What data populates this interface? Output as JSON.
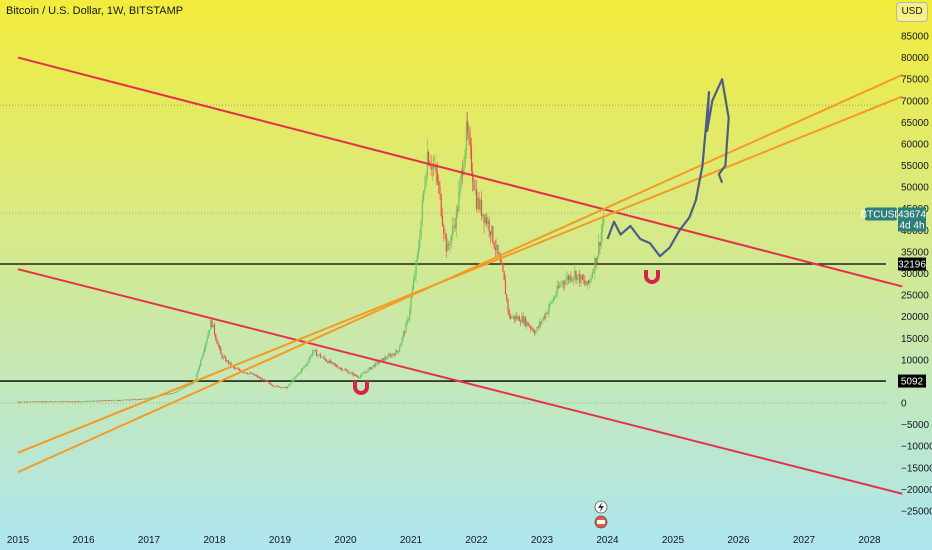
{
  "header": {
    "title": "Bitcoin / U.S. Dollar, 1W, BITSTAMP",
    "currency": "USD"
  },
  "colors": {
    "bg_top": "#f3ec3c",
    "bg_bottom": "#aee6f0",
    "red_line": "#e5304b",
    "orange_line": "#f59a23",
    "projection": "#4a5f86",
    "candle_up": "#6cc46a",
    "candle_down": "#e5504b",
    "level": "#000000",
    "magnet": "#d6234a"
  },
  "chart_data": {
    "type": "line",
    "ylim": [
      -27000,
      88000
    ],
    "xlim": [
      2015.0,
      2028.5
    ],
    "y_ticks": [
      85000,
      80000,
      75000,
      70000,
      65000,
      60000,
      55000,
      50000,
      45000,
      40000,
      35000,
      30000,
      25000,
      20000,
      15000,
      10000,
      5000,
      0,
      -5000,
      -10000,
      -15000,
      -20000,
      -25000
    ],
    "y_tick_labels": [
      "85000",
      "80000",
      "75000",
      "70000",
      "65000",
      "60000",
      "55000",
      "50000",
      "45000",
      "40000",
      "35000",
      "30000",
      "25000",
      "20000",
      "15000",
      "10000",
      "5000",
      "0",
      "−5000",
      "−10000",
      "−15000",
      "−20000",
      "−25000"
    ],
    "x_ticks": [
      2015,
      2016,
      2017,
      2018,
      2019,
      2020,
      2021,
      2022,
      2023,
      2024,
      2025,
      2026,
      2027,
      2028
    ],
    "x_tick_labels": [
      "2015",
      "2016",
      "2017",
      "2018",
      "2019",
      "2020",
      "2021",
      "2022",
      "2023",
      "2024",
      "2025",
      "2026",
      "2027",
      "2028"
    ],
    "series": [
      {
        "role": "price",
        "x": [
          2015.0,
          2016.0,
          2016.9,
          2017.4,
          2017.7,
          2017.95,
          2018.1,
          2018.3,
          2018.6,
          2018.9,
          2019.1,
          2019.4,
          2019.5,
          2019.8,
          2020.2,
          2020.5,
          2020.8,
          2020.95,
          2021.1,
          2021.25,
          2021.4,
          2021.55,
          2021.7,
          2021.85,
          2022.0,
          2022.2,
          2022.4,
          2022.5,
          2022.7,
          2022.9,
          2023.1,
          2023.3,
          2023.5,
          2023.7,
          2023.85,
          2023.95
        ],
        "y": [
          300,
          400,
          900,
          2500,
          5000,
          19000,
          11000,
          8000,
          6500,
          4000,
          3500,
          9000,
          12000,
          9000,
          6000,
          9500,
          12000,
          19000,
          34000,
          58000,
          52000,
          35000,
          44000,
          63000,
          47000,
          41000,
          30000,
          20000,
          19500,
          16500,
          22000,
          28000,
          30000,
          27000,
          35000,
          43674
        ]
      },
      {
        "role": "projection",
        "x": [
          2024.0,
          2024.1,
          2024.2,
          2024.35,
          2024.5,
          2024.65,
          2024.8,
          2024.95,
          2025.1,
          2025.25,
          2025.35,
          2025.45,
          2025.55,
          2025.52,
          2025.6,
          2025.75,
          2025.85,
          2025.8,
          2025.7,
          2025.75
        ],
        "y": [
          38000,
          42000,
          39000,
          41000,
          38000,
          37000,
          34000,
          36000,
          40000,
          43000,
          47000,
          55000,
          72000,
          63000,
          70000,
          75000,
          66000,
          55000,
          53000,
          51000
        ]
      }
    ],
    "trendlines": [
      {
        "color": "red",
        "points": [
          [
            2015.0,
            80000
          ],
          [
            2028.5,
            27000
          ]
        ]
      },
      {
        "color": "red",
        "points": [
          [
            2015.0,
            31000
          ],
          [
            2028.5,
            -21000
          ]
        ]
      },
      {
        "color": "orange",
        "points": [
          [
            2015.0,
            -16000
          ],
          [
            2028.5,
            76000
          ]
        ]
      },
      {
        "color": "orange",
        "points": [
          [
            2015.0,
            -11500
          ],
          [
            2028.5,
            71000
          ]
        ]
      }
    ],
    "levels": [
      {
        "value": 32196,
        "label": "32196"
      },
      {
        "value": 5092,
        "label": "5092"
      }
    ],
    "dotted_levels": [
      69000,
      44000,
      0
    ],
    "current_price": {
      "value": 43674,
      "symbol": "BTCUSD",
      "price_label": "43674",
      "countdown": "4d 4h"
    }
  }
}
